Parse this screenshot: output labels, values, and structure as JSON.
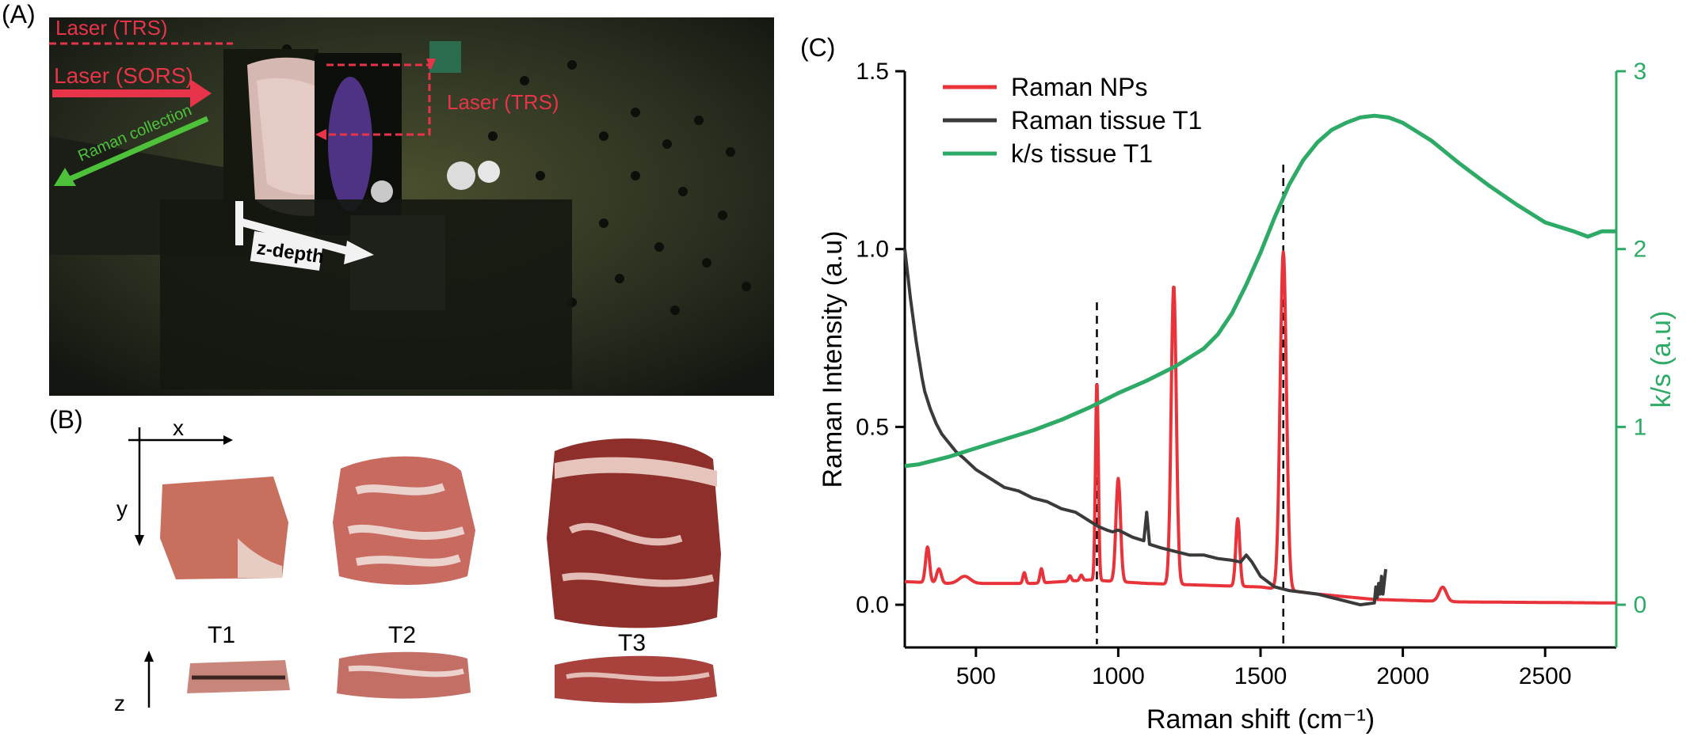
{
  "panels": {
    "a": "(A)",
    "b": "(B)",
    "c": "(C)"
  },
  "photo_a": {
    "labels": {
      "laser_trs_top": "Laser (TRS)",
      "laser_sors": "Laser (SORS)",
      "laser_trs_right": "Laser (TRS)",
      "raman_collection": "Raman collection",
      "z_depth": "z-depth"
    },
    "colors": {
      "laser": "#e8344a",
      "raman": "#4ec13a",
      "depth": "#f2f2f2"
    }
  },
  "photo_b": {
    "axes": {
      "x": "x",
      "y": "y",
      "z": "z"
    },
    "tissues": [
      {
        "label": "T1"
      },
      {
        "label": "T2"
      },
      {
        "label": "T3"
      }
    ]
  },
  "chart_data": {
    "type": "line",
    "xlabel": "Raman shift (cm⁻¹)",
    "ylabel": "Raman Intensity (a.u)",
    "y2label": "k/s (a.u)",
    "xlim": [
      250,
      2750
    ],
    "ylim": [
      -0.12,
      1.5
    ],
    "y2lim": [
      -0.24,
      3
    ],
    "xticks": [
      500,
      1000,
      1500,
      2000,
      2500
    ],
    "yticks": [
      0.0,
      0.5,
      1.0,
      1.5
    ],
    "ytick_labels": [
      "0.0",
      "0.5",
      "1.0",
      "1.5"
    ],
    "y2ticks": [
      0,
      1,
      2,
      3
    ],
    "legend_position": "top-left",
    "vlines": [
      925,
      1580
    ],
    "series": [
      {
        "name": "Raman NPs",
        "color": "#e8333b",
        "axis": "left",
        "baseline": [
          [
            250,
            0.065
          ],
          [
            400,
            0.06
          ],
          [
            700,
            0.06
          ],
          [
            900,
            0.07
          ],
          [
            1100,
            0.06
          ],
          [
            1300,
            0.055
          ],
          [
            1500,
            0.05
          ],
          [
            1700,
            0.03
          ],
          [
            1900,
            0.015
          ],
          [
            2200,
            0.008
          ],
          [
            2750,
            0.005
          ]
        ],
        "peaks": [
          [
            330,
            0.1,
            7
          ],
          [
            370,
            0.04,
            8
          ],
          [
            460,
            0.02,
            20
          ],
          [
            670,
            0.03,
            5
          ],
          [
            730,
            0.04,
            5
          ],
          [
            830,
            0.015,
            5
          ],
          [
            870,
            0.015,
            5
          ],
          [
            925,
            0.56,
            5
          ],
          [
            1000,
            0.29,
            8
          ],
          [
            1195,
            0.84,
            9
          ],
          [
            1420,
            0.19,
            7
          ],
          [
            1580,
            0.95,
            11
          ],
          [
            2140,
            0.04,
            13
          ]
        ]
      },
      {
        "name": "Raman tissue T1",
        "color": "#3a3a3a",
        "axis": "left",
        "x": [
          250,
          260,
          270,
          280,
          290,
          300,
          310,
          320,
          340,
          360,
          380,
          400,
          430,
          460,
          500,
          550,
          600,
          650,
          700,
          750,
          800,
          850,
          870,
          900,
          930,
          960,
          980,
          1000,
          1050,
          1090,
          1100,
          1110,
          1150,
          1200,
          1250,
          1300,
          1350,
          1400,
          1430,
          1450,
          1470,
          1500,
          1550,
          1600,
          1650,
          1700,
          1800,
          1850,
          1900,
          1905,
          1910,
          1915,
          1920,
          1925,
          1930,
          1940
        ],
        "y": [
          1.0,
          0.93,
          0.86,
          0.8,
          0.74,
          0.69,
          0.64,
          0.6,
          0.55,
          0.51,
          0.48,
          0.46,
          0.43,
          0.41,
          0.38,
          0.355,
          0.33,
          0.32,
          0.3,
          0.29,
          0.27,
          0.26,
          0.25,
          0.235,
          0.22,
          0.21,
          0.205,
          0.21,
          0.19,
          0.18,
          0.26,
          0.17,
          0.16,
          0.15,
          0.14,
          0.14,
          0.13,
          0.125,
          0.12,
          0.14,
          0.12,
          0.08,
          0.05,
          0.04,
          0.035,
          0.03,
          0.01,
          0.0,
          0.005,
          0.05,
          0.02,
          0.06,
          0.03,
          0.08,
          0.03,
          0.1
        ]
      },
      {
        "name": "k/s tissue T1",
        "color": "#2dab66",
        "axis": "right",
        "x": [
          250,
          300,
          400,
          500,
          600,
          700,
          800,
          900,
          1000,
          1100,
          1200,
          1300,
          1350,
          1400,
          1450,
          1500,
          1550,
          1600,
          1650,
          1700,
          1750,
          1800,
          1850,
          1900,
          1950,
          2000,
          2100,
          2200,
          2300,
          2400,
          2500,
          2600,
          2650,
          2700,
          2750
        ],
        "y": [
          0.78,
          0.79,
          0.83,
          0.88,
          0.93,
          0.98,
          1.04,
          1.11,
          1.19,
          1.26,
          1.34,
          1.44,
          1.52,
          1.64,
          1.8,
          1.98,
          2.18,
          2.36,
          2.5,
          2.6,
          2.67,
          2.71,
          2.74,
          2.75,
          2.74,
          2.71,
          2.61,
          2.48,
          2.36,
          2.25,
          2.15,
          2.1,
          2.07,
          2.1,
          2.1
        ]
      }
    ]
  }
}
